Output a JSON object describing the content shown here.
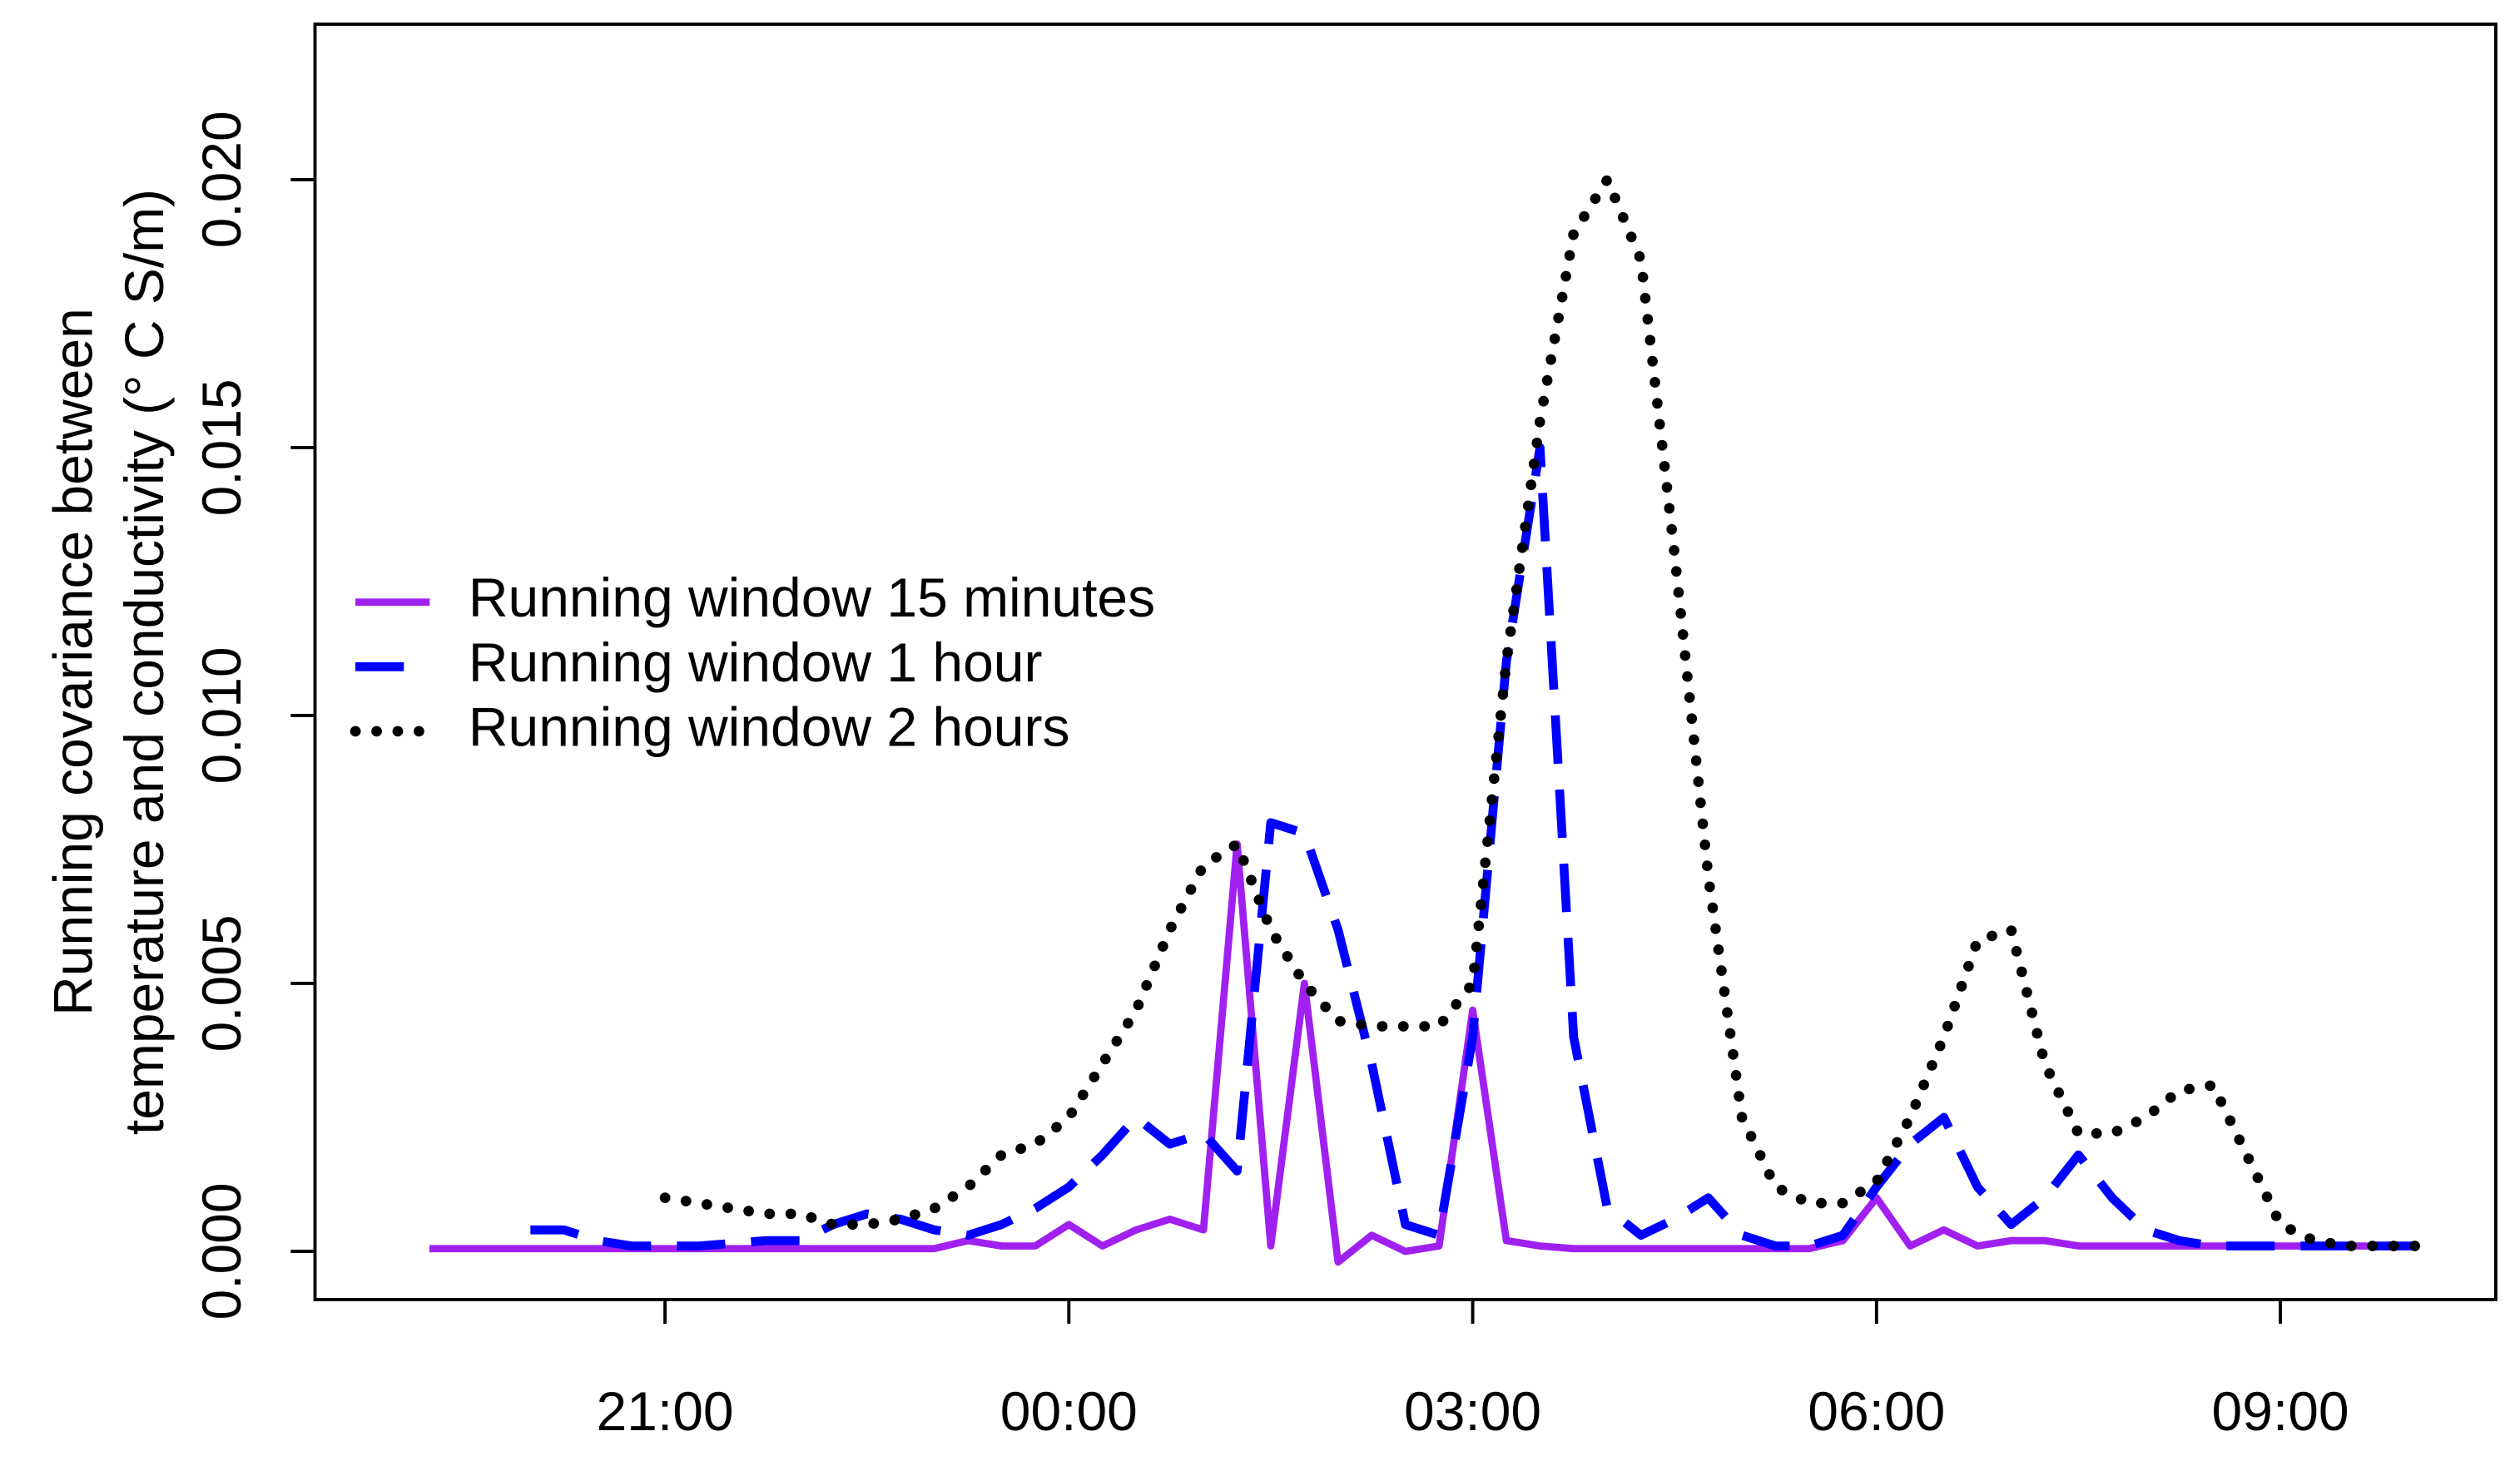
{
  "chart_data": {
    "type": "line",
    "y_label": [
      "Running covariance between",
      "temperature and conductivity (° C S/m)"
    ],
    "x": [
      19.25,
      19.5,
      19.75,
      20,
      20.25,
      20.5,
      20.75,
      21,
      21.25,
      21.5,
      21.75,
      22,
      22.25,
      22.5,
      22.75,
      23,
      23.25,
      23.5,
      23.75,
      24,
      24.25,
      24.5,
      24.75,
      25,
      25.25,
      25.5,
      25.75,
      26,
      26.25,
      26.5,
      26.75,
      27,
      27.25,
      27.5,
      27.75,
      28,
      28.25,
      28.5,
      28.75,
      29,
      29.25,
      29.5,
      29.75,
      30,
      30.25,
      30.5,
      30.75,
      31,
      31.25,
      31.5,
      31.75,
      32,
      32.25,
      32.5,
      32.75,
      33,
      33.25,
      33.5,
      33.75,
      34
    ],
    "series": [
      {
        "name": "Running window 15 minutes",
        "color": "#a020f0",
        "style": "solid",
        "values": [
          5e-05,
          5e-05,
          5e-05,
          5e-05,
          5e-05,
          5e-05,
          5e-05,
          5e-05,
          5e-05,
          5e-05,
          5e-05,
          5e-05,
          5e-05,
          5e-05,
          5e-05,
          5e-05,
          0.0002,
          0.0001,
          0.0001,
          0.0005,
          0.0001,
          0.0004,
          0.0006,
          0.0004,
          0.0076,
          0.0001,
          0.005,
          -0.0002,
          0.0003,
          0,
          0.0001,
          0.0045,
          0.0002,
          0.0001,
          5e-05,
          5e-05,
          5e-05,
          5e-05,
          5e-05,
          5e-05,
          5e-05,
          5e-05,
          0.0002,
          0.001,
          0.0001,
          0.0004,
          0.0001,
          0.0002,
          0.0002,
          0.0001,
          0.0001,
          0.0001,
          0.0001,
          0.0001,
          0.0001,
          0.0001,
          0.0001,
          0.0001,
          0.0001,
          0.0001
        ]
      },
      {
        "name": "Running window 1 hour",
        "color": "#0000ff",
        "style": "dashed",
        "values": [
          null,
          null,
          null,
          0.0004,
          0.0004,
          0.0002,
          0.0001,
          0.0001,
          0.0001,
          0.00015,
          0.0002,
          0.0002,
          0.0005,
          0.0007,
          0.0006,
          0.0004,
          0.0003,
          0.0005,
          0.0008,
          0.0012,
          0.0018,
          0.0025,
          0.002,
          0.0022,
          0.0015,
          0.008,
          0.0078,
          0.006,
          0.0035,
          0.0005,
          0.0003,
          0.004,
          0.011,
          0.015,
          0.004,
          0.0008,
          0.0003,
          0.0006,
          0.001,
          0.0003,
          0.0001,
          0.0001,
          0.0003,
          0.0012,
          0.002,
          0.0025,
          0.0012,
          0.0005,
          0.001,
          0.0018,
          0.001,
          0.0004,
          0.0002,
          0.0001,
          0.0001,
          0.0001,
          0.0001,
          0.0001,
          0.0001,
          0.0001
        ]
      },
      {
        "name": "Running window 2 hours",
        "color": "#000000",
        "style": "dotted",
        "values": [
          null,
          null,
          null,
          null,
          null,
          null,
          null,
          0.001,
          0.0009,
          0.0008,
          0.0007,
          0.0007,
          0.0005,
          0.0005,
          0.0006,
          0.0008,
          0.0012,
          0.0018,
          0.002,
          0.0025,
          0.0035,
          0.0045,
          0.006,
          0.0072,
          0.0076,
          0.006,
          0.005,
          0.0043,
          0.0042,
          0.0042,
          0.0042,
          0.005,
          0.011,
          0.0155,
          0.019,
          0.02,
          0.0185,
          0.013,
          0.007,
          0.0025,
          0.0012,
          0.0009,
          0.0009,
          0.0013,
          0.0025,
          0.004,
          0.0058,
          0.006,
          0.0035,
          0.0022,
          0.0022,
          0.0025,
          0.003,
          0.0031,
          0.0018,
          0.0005,
          0.0002,
          0.0001,
          0.0001,
          0.0001
        ]
      }
    ],
    "xlim": [
      18.4,
      34.6
    ],
    "xticks": [
      {
        "value": 21,
        "label": "21:00"
      },
      {
        "value": 24,
        "label": "00:00"
      },
      {
        "value": 27,
        "label": "03:00"
      },
      {
        "value": 30,
        "label": "06:00"
      },
      {
        "value": 33,
        "label": "09:00"
      }
    ],
    "ylim": [
      -0.0009,
      0.0229
    ],
    "yticks": [
      {
        "value": 0,
        "label": "0.000"
      },
      {
        "value": 0.005,
        "label": "0.005"
      },
      {
        "value": 0.01,
        "label": "0.010"
      },
      {
        "value": 0.015,
        "label": "0.015"
      },
      {
        "value": 0.02,
        "label": "0.020"
      }
    ],
    "legend": "left"
  }
}
